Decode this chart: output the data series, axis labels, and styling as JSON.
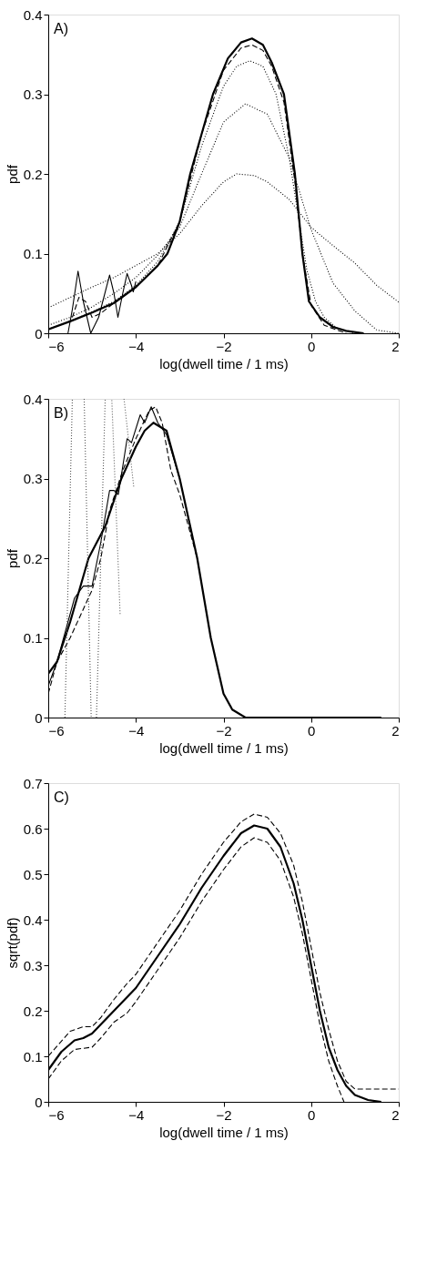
{
  "chart_data": [
    {
      "type": "line",
      "annotations": [
        "A)"
      ],
      "xlabel": "log(dwell time / 1 ms)",
      "ylabel": "pdf",
      "xlim": [
        -6,
        2
      ],
      "ylim": [
        0,
        0.4
      ],
      "xticks": [
        -6,
        -4,
        -2,
        0,
        2
      ],
      "yticks": [
        0,
        0.1,
        0.2,
        0.3,
        0.4
      ],
      "series": [
        {
          "color": "#000000",
          "line_style": "solid",
          "x": [
            -6,
            -5.5,
            -5,
            -4.5,
            -4,
            -3.5,
            -3.28,
            -3,
            -2.76,
            -2.5,
            -2.24,
            -1.9,
            -1.6,
            -1.35,
            -1.1,
            -0.9,
            -0.62,
            -0.37,
            -0.2,
            -0.05,
            0.2,
            0.5,
            0.8,
            1.2
          ],
          "values": [
            0.005,
            0.015,
            0.026,
            0.038,
            0.058,
            0.085,
            0.1,
            0.14,
            0.2,
            0.25,
            0.3,
            0.345,
            0.365,
            0.37,
            0.362,
            0.34,
            0.3,
            0.2,
            0.1,
            0.04,
            0.02,
            0.008,
            0.003,
            0.0
          ]
        },
        {
          "color": "#000000",
          "line_style": "dashed",
          "x": [
            -5.45,
            -5.3,
            -5.15,
            -5.0,
            -4.8,
            -4.5,
            -4,
            -3.5,
            -3,
            -2.5,
            -2,
            -1.6,
            -1.35,
            -1.1,
            -0.9,
            -0.62,
            -0.37,
            -0.2,
            0,
            0.3,
            0.8
          ],
          "values": [
            0.02,
            0.045,
            0.04,
            0.02,
            0.025,
            0.038,
            0.058,
            0.085,
            0.14,
            0.25,
            0.33,
            0.358,
            0.362,
            0.355,
            0.335,
            0.29,
            0.19,
            0.1,
            0.035,
            0.01,
            0.0
          ]
        },
        {
          "color": "#000000",
          "line_style": "dotted",
          "x": [
            -6,
            -5.5,
            -5,
            -4.5,
            -4,
            -3.5,
            -3,
            -2.5,
            -2,
            -1.7,
            -1.4,
            -1.1,
            -0.8,
            -0.5,
            -0.3,
            -0.1,
            0.1,
            0.3,
            0.6,
            1.0
          ],
          "values": [
            0.005,
            0.015,
            0.027,
            0.04,
            0.06,
            0.09,
            0.14,
            0.235,
            0.31,
            0.335,
            0.342,
            0.335,
            0.3,
            0.22,
            0.15,
            0.08,
            0.04,
            0.02,
            0.006,
            0.0
          ]
        },
        {
          "color": "#000000",
          "line_style": "dotted",
          "x": [
            -6,
            -5.5,
            -5,
            -4.5,
            -4,
            -3.5,
            -3,
            -2.5,
            -2,
            -1.5,
            -1,
            -0.5,
            0,
            0.5,
            1,
            1.5,
            2
          ],
          "values": [
            0.01,
            0.02,
            0.033,
            0.05,
            0.07,
            0.098,
            0.133,
            0.2,
            0.265,
            0.288,
            0.275,
            0.22,
            0.13,
            0.063,
            0.028,
            0.004,
            0.0
          ]
        },
        {
          "color": "#000000",
          "line_style": "dotted",
          "x": [
            -6,
            -5.5,
            -5,
            -4.5,
            -4,
            -3.5,
            -3,
            -2.5,
            -2,
            -1.7,
            -1.3,
            -1,
            -0.5,
            0,
            0.5,
            1,
            1.5,
            2
          ],
          "values": [
            0.032,
            0.045,
            0.058,
            0.07,
            0.085,
            0.1,
            0.125,
            0.16,
            0.19,
            0.2,
            0.198,
            0.19,
            0.168,
            0.133,
            0.11,
            0.088,
            0.06,
            0.039
          ]
        },
        {
          "color": "#000000",
          "line_style": "solid",
          "x": [
            -5.55,
            -5.45,
            -5.32,
            -5.2,
            -5.03,
            -4.85,
            -4.6,
            -4.5,
            -4.41,
            -4.3,
            -4.2,
            -4.1,
            -4.06,
            -4.0
          ],
          "values": [
            0.0,
            0.03,
            0.078,
            0.04,
            0.0,
            0.02,
            0.073,
            0.05,
            0.02,
            0.05,
            0.075,
            0.06,
            0.052,
            0.065
          ]
        }
      ]
    },
    {
      "type": "line",
      "annotations": [
        "B)"
      ],
      "xlabel": "log(dwell time / 1 ms)",
      "ylabel": "pdf",
      "xlim": [
        -6,
        2
      ],
      "ylim": [
        0,
        0.4
      ],
      "xticks": [
        -6,
        -4,
        -2,
        0,
        2
      ],
      "yticks": [
        0,
        0.1,
        0.2,
        0.3,
        0.4
      ],
      "series": [
        {
          "color": "#000000",
          "line_style": "solid",
          "x": [
            -6,
            -5.8,
            -5.5,
            -5.08,
            -4.7,
            -4.33,
            -4,
            -3.8,
            -3.6,
            -3.3,
            -3.0,
            -2.6,
            -2.29,
            -2.0,
            -1.8,
            -1.5,
            0,
            1.6
          ],
          "values": [
            0.055,
            0.07,
            0.12,
            0.2,
            0.24,
            0.3,
            0.34,
            0.36,
            0.37,
            0.36,
            0.3,
            0.2,
            0.1,
            0.03,
            0.01,
            0.0,
            0.0,
            0.0
          ]
        },
        {
          "color": "#000000",
          "line_style": "solid",
          "x": [
            -6,
            -5.8,
            -5.4,
            -5.2,
            -5.0,
            -4.8,
            -4.6,
            -4.5,
            -4.4,
            -4.2,
            -4.1,
            -3.9,
            -3.8,
            -3.65,
            -3.5,
            -3.3,
            -3.0
          ],
          "values": [
            0.04,
            0.07,
            0.15,
            0.165,
            0.165,
            0.22,
            0.285,
            0.285,
            0.28,
            0.35,
            0.345,
            0.38,
            0.37,
            0.39,
            0.37,
            0.355,
            0.3
          ]
        },
        {
          "color": "#000000",
          "line_style": "dashed",
          "x": [
            -6,
            -5.8,
            -5.5,
            -5.0,
            -4.8,
            -4.6,
            -4.3,
            -4,
            -3.7,
            -3.55,
            -3.4,
            -3.2,
            -3.0,
            -2.6
          ],
          "values": [
            0.03,
            0.07,
            0.1,
            0.16,
            0.2,
            0.26,
            0.31,
            0.35,
            0.385,
            0.39,
            0.37,
            0.31,
            0.28,
            0.2
          ]
        },
        {
          "color": "#555555",
          "line_style": "dotted",
          "x": [
            -5.62,
            -5.45
          ],
          "values": [
            0.0,
            0.4
          ]
        },
        {
          "color": "#555555",
          "line_style": "dotted",
          "x": [
            -5.18,
            -5.02
          ],
          "values": [
            0.4,
            0.0
          ]
        },
        {
          "color": "#555555",
          "line_style": "dotted",
          "x": [
            -4.9,
            -4.7
          ],
          "values": [
            0.0,
            0.4
          ]
        },
        {
          "color": "#555555",
          "line_style": "dotted",
          "x": [
            -4.36,
            -4.55
          ],
          "values": [
            0.13,
            0.4
          ]
        },
        {
          "color": "#555555",
          "line_style": "dotted",
          "x": [
            -4.05,
            -4.27
          ],
          "values": [
            0.29,
            0.4
          ]
        }
      ]
    },
    {
      "type": "line",
      "annotations": [
        "C)"
      ],
      "xlabel": "log(dwell time / 1 ms)",
      "ylabel": "sqrt(pdf)",
      "xlim": [
        -6,
        2
      ],
      "ylim": [
        0,
        0.7
      ],
      "xticks": [
        -6,
        -4,
        -2,
        0,
        2
      ],
      "yticks": [
        0,
        0.1,
        0.2,
        0.3,
        0.4,
        0.5,
        0.6,
        0.7
      ],
      "series": [
        {
          "color": "#000000",
          "line_style": "solid",
          "x": [
            -6,
            -5.7,
            -5.4,
            -5.2,
            -5.0,
            -4.8,
            -4.5,
            -4,
            -3.5,
            -3,
            -2.5,
            -2,
            -1.6,
            -1.3,
            -1.0,
            -0.7,
            -0.4,
            -0.2,
            0,
            0.2,
            0.4,
            0.6,
            0.8,
            1.0,
            1.3,
            1.6
          ],
          "values": [
            0.07,
            0.11,
            0.135,
            0.14,
            0.15,
            0.17,
            0.2,
            0.25,
            0.32,
            0.39,
            0.47,
            0.54,
            0.59,
            0.607,
            0.6,
            0.56,
            0.48,
            0.4,
            0.3,
            0.2,
            0.12,
            0.07,
            0.035,
            0.015,
            0.004,
            0.0
          ]
        },
        {
          "color": "#000000",
          "line_style": "dashed",
          "x": [
            -6,
            -5.5,
            -5.2,
            -5,
            -4.8,
            -4.5,
            -4.2,
            -4,
            -3.5,
            -3,
            -2.5,
            -2,
            -1.6,
            -1.3,
            -1.0,
            -0.7,
            -0.4,
            -0.2,
            0,
            0.2,
            0.4,
            0.6,
            0.8,
            1.0,
            2.0
          ],
          "values": [
            0.1,
            0.155,
            0.165,
            0.165,
            0.185,
            0.225,
            0.26,
            0.28,
            0.35,
            0.42,
            0.5,
            0.57,
            0.615,
            0.632,
            0.625,
            0.59,
            0.52,
            0.44,
            0.34,
            0.24,
            0.16,
            0.09,
            0.045,
            0.028,
            0.028
          ]
        },
        {
          "color": "#000000",
          "line_style": "dashed",
          "x": [
            -6,
            -5.7,
            -5.4,
            -5.0,
            -4.8,
            -4.5,
            -4.2,
            -4,
            -3.5,
            -3,
            -2.5,
            -2,
            -1.6,
            -1.3,
            -1.0,
            -0.7,
            -0.4,
            -0.2,
            0,
            0.2,
            0.4,
            0.6,
            0.75
          ],
          "values": [
            0.05,
            0.09,
            0.115,
            0.12,
            0.14,
            0.175,
            0.195,
            0.22,
            0.29,
            0.36,
            0.44,
            0.51,
            0.56,
            0.58,
            0.57,
            0.53,
            0.45,
            0.37,
            0.27,
            0.17,
            0.09,
            0.035,
            0.0
          ]
        }
      ]
    }
  ]
}
